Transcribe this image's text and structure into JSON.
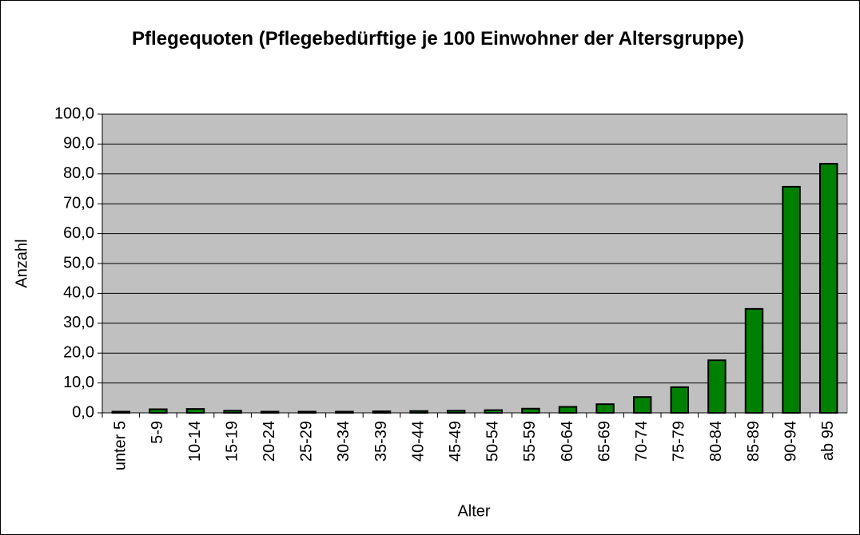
{
  "chart_data": {
    "type": "bar",
    "title": "Pflegequoten (Pflegebedürftige je 100 Einwohner der Altersgruppe)",
    "x_label": "Alter",
    "y_label": "Anzahl",
    "categories": [
      "unter 5",
      "5-9",
      "10-14",
      "15-19",
      "20-24",
      "25-29",
      "30-34",
      "35-39",
      "40-44",
      "45-49",
      "50-54",
      "55-59",
      "60-64",
      "65-69",
      "70-74",
      "75-79",
      "80-84",
      "85-89",
      "90-94",
      "ab 95"
    ],
    "values": [
      0.4,
      1.2,
      1.3,
      0.7,
      0.4,
      0.4,
      0.4,
      0.5,
      0.6,
      0.7,
      0.9,
      1.4,
      2.0,
      2.9,
      5.3,
      8.6,
      17.6,
      34.8,
      75.7,
      83.4
    ],
    "color": "#008000",
    "ylim": [
      0,
      100
    ],
    "yticks": [
      {
        "value": 0,
        "label": "0,0"
      },
      {
        "value": 10,
        "label": "10,0"
      },
      {
        "value": 20,
        "label": "20,0"
      },
      {
        "value": 30,
        "label": "30,0"
      },
      {
        "value": 40,
        "label": "40,0"
      },
      {
        "value": 50,
        "label": "50,0"
      },
      {
        "value": 60,
        "label": "60,0"
      },
      {
        "value": 70,
        "label": "70,0"
      },
      {
        "value": 80,
        "label": "80,0"
      },
      {
        "value": 90,
        "label": "90,0"
      },
      {
        "value": 100,
        "label": "100,0"
      }
    ],
    "grid": true
  }
}
